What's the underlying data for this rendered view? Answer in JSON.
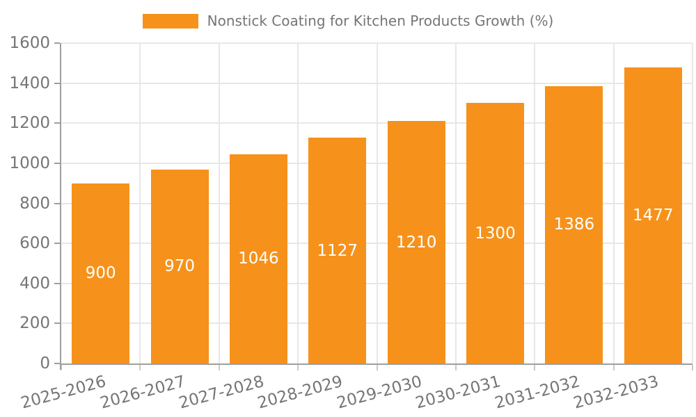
{
  "legend": {
    "label": "Nonstick Coating for Kitchen Products Growth (%)"
  },
  "chart_data": {
    "type": "bar",
    "title": "Nonstick Coating for Kitchen Products Growth (%)",
    "categories": [
      "2025-2026",
      "2026-2027",
      "2027-2028",
      "2028-2029",
      "2029-2030",
      "2030-2031",
      "2031-2032",
      "2032-2033"
    ],
    "values": [
      900,
      970,
      1046,
      1127,
      1210,
      1300,
      1386,
      1477
    ],
    "xlabel": "",
    "ylabel": "",
    "ylim": [
      0,
      1600
    ],
    "ytick_step": 200,
    "yticks": [
      0,
      200,
      400,
      600,
      800,
      1000,
      1200,
      1400,
      1600
    ],
    "grid": true,
    "legend_position": "top-center",
    "value_label_position": "inside-center",
    "xlabel_rotation_deg": -15
  },
  "colors": {
    "bar": "#F6921B",
    "axis": "#9E9E9E",
    "grid": "#E7E7E7",
    "tick_mark_x": "#C9C9C9",
    "tick_label": "#757575",
    "legend_text": "#757575",
    "value_label": "#FFFFFF",
    "background": "#FFFFFF"
  }
}
